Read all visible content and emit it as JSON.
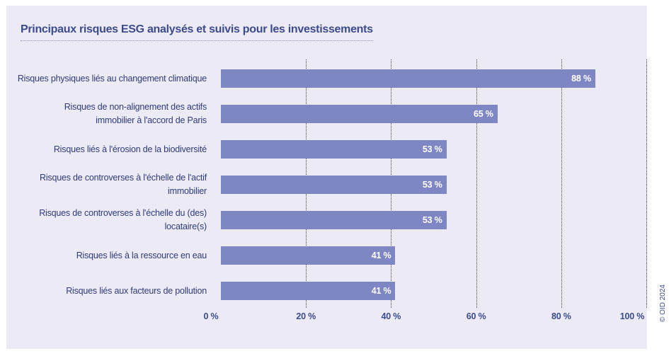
{
  "chart_data": {
    "type": "bar",
    "orientation": "horizontal",
    "title": "Principaux risques ESG analysés et suivis pour les investissements",
    "categories": [
      "Risques physiques liés au changement climatique",
      "Risques de non-alignement des actifs immobilier à l'accord de Paris",
      "Risques liés à l'érosion de la biodiversité",
      "Risques de controverses à l'échelle de l'actif immobilier",
      "Risques de controverses à l'échelle du (des) locataire(s)",
      "Risques liés à la ressource en eau",
      "Risques liés aux facteurs de pollution"
    ],
    "category_lines": [
      [
        "Risques physiques liés au changement climatique"
      ],
      [
        "Risques de non-alignement des actifs",
        "immobilier à l'accord de Paris"
      ],
      [
        "Risques liés à l'érosion de la biodiversité"
      ],
      [
        "Risques de controverses à l'échelle de l'actif",
        "immobilier"
      ],
      [
        "Risques de controverses à l'échelle du (des)",
        "locataire(s)"
      ],
      [
        "Risques liés à la ressource en eau"
      ],
      [
        "Risques liés aux facteurs de pollution"
      ]
    ],
    "values": [
      88,
      65,
      53,
      53,
      53,
      41,
      41
    ],
    "value_labels": [
      "88 %",
      "65 %",
      "53 %",
      "53 %",
      "53 %",
      "41 %",
      "41 %"
    ],
    "xlim": [
      0,
      100
    ],
    "x_ticks": [
      0,
      20,
      40,
      60,
      80,
      100
    ],
    "x_tick_labels": [
      "0 %",
      "20 %",
      "40 %",
      "60 %",
      "80 %",
      "100 %"
    ],
    "grid": "vertical dotted",
    "bar_color": "#7f86c4"
  },
  "copyright": "© OID 2024"
}
